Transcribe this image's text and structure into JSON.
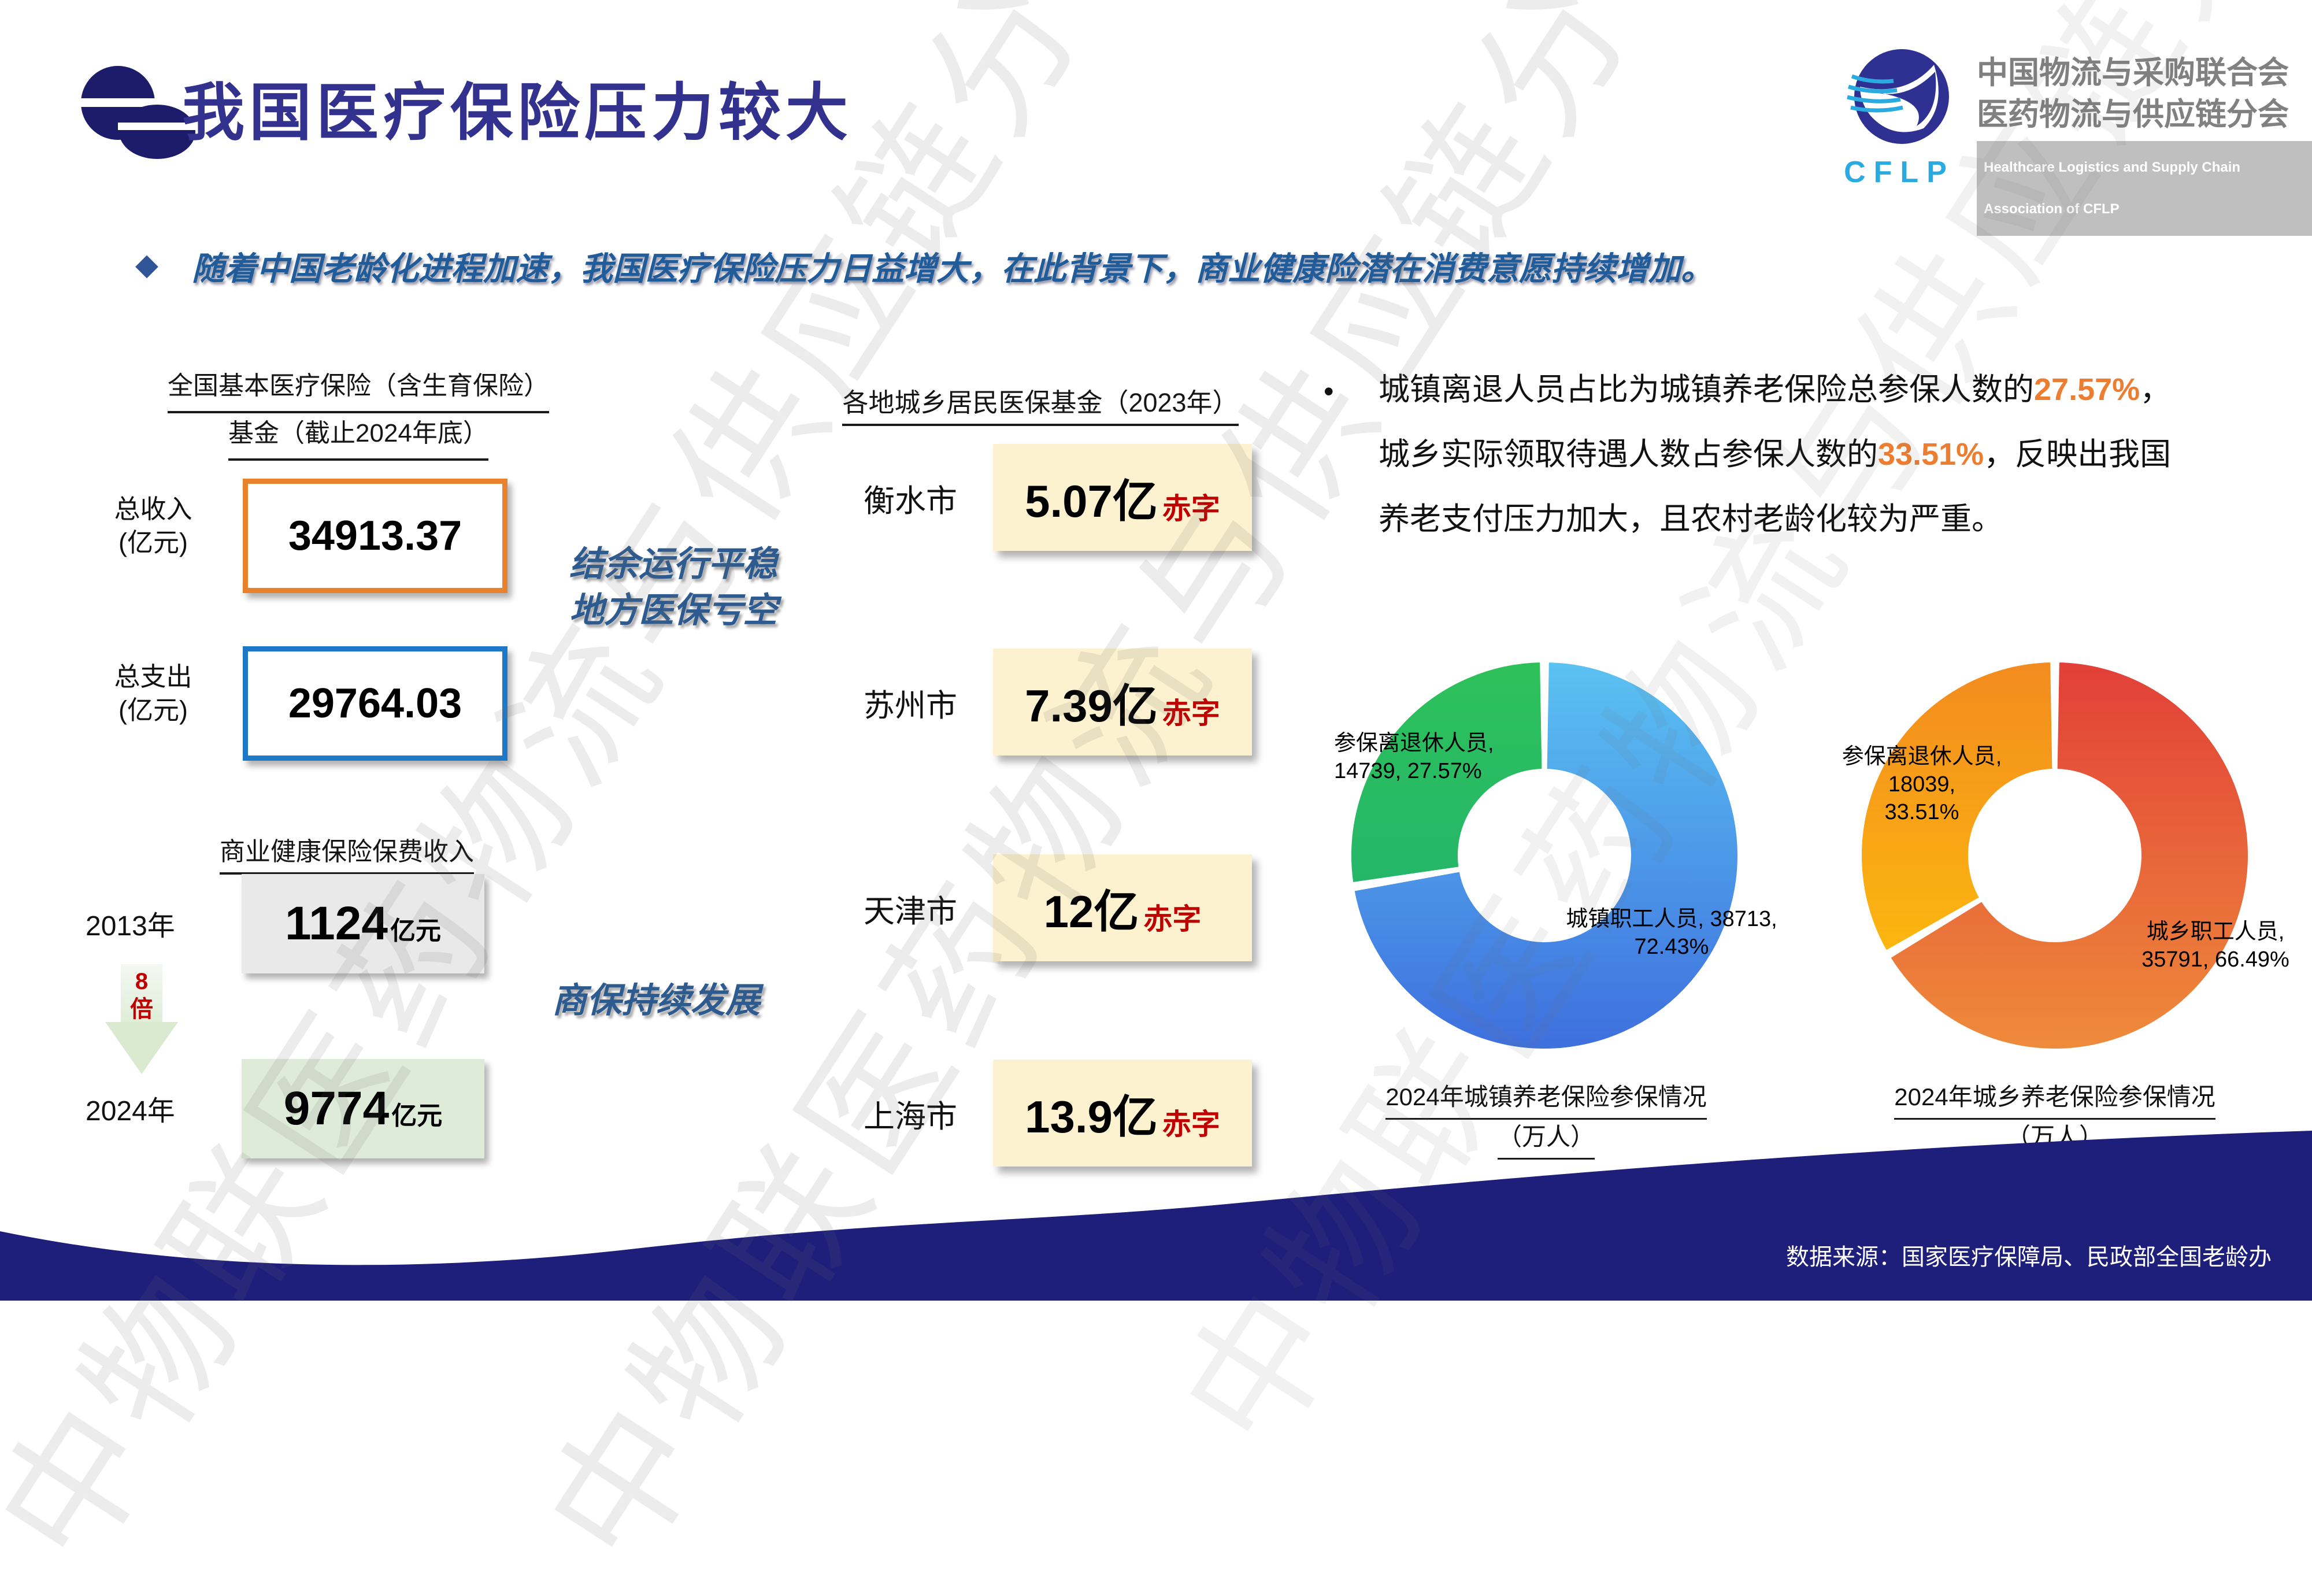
{
  "slide": {
    "title": "我国医疗保险压力较大",
    "watermark": "中物联医药物流与供应链分会",
    "source": "数据来源：国家医疗保障局、民政部全国老龄办"
  },
  "logo": {
    "acronym": "CFLP",
    "org_line1": "中国物流与采购联合会",
    "org_line2": "医药物流与供应链分会",
    "org_en": "Healthcare Logistics and Supply Chain Association of CFLP"
  },
  "intro": {
    "bullet": "◆",
    "text": "随着中国老龄化进程加速，我国医疗保险压力日益增大，在此背景下，商业健康险潜在消费意愿持续增加。"
  },
  "basic_fund": {
    "header_line1": "全国基本医疗保险（含生育保险）",
    "header_line2": "基金（截止2024年底）",
    "income_label_1": "总收入",
    "income_label_2": "(亿元)",
    "income_value": "34913.37",
    "expense_label_1": "总支出",
    "expense_label_2": "(亿元)",
    "expense_value": "29764.03"
  },
  "captions": {
    "caption1_line1": "结余运行平稳",
    "caption1_line2": "地方医保亏空",
    "caption2": "商保持续发展"
  },
  "commercial": {
    "header": "商业健康保险保费收入",
    "year1": "2013年",
    "value1": "1124",
    "unit": "亿元",
    "multiplier_line1": "8",
    "multiplier_line2": "倍",
    "year2": "2024年",
    "value2": "9774"
  },
  "local_fund": {
    "header": "各地城乡居民医保基金（2023年）",
    "deficit_label": "赤字",
    "cities": [
      {
        "name": "衡水市",
        "value": "5.07亿"
      },
      {
        "name": "苏州市",
        "value": "7.39亿"
      },
      {
        "name": "天津市",
        "value": "12亿"
      },
      {
        "name": "上海市",
        "value": "13.9亿"
      }
    ]
  },
  "right_text": {
    "bullet": "•",
    "l1a": "城镇离退人员占比为城镇养老保险总参保人数的",
    "l1pct": "27.57%",
    "l1b": "，",
    "l2a": "城乡实际领取待遇人数占参保人数的",
    "l2pct": "33.51%",
    "l2b": "，反映出我国",
    "l3": "养老支付压力加大，且农村老龄化较为严重。",
    "highlight_color": "#ED7D31"
  },
  "chart_data": [
    {
      "type": "pie",
      "donut": true,
      "title_line1": "2024年城镇养老保险参保情况",
      "title_line2": "（万人）",
      "unit": "万人",
      "slices": [
        {
          "label": "城镇职工人员",
          "value": 38713,
          "pct": 72.43,
          "color_top": "#5BC2F2",
          "color_bottom": "#3E6FDE",
          "label_line1": "城镇职工人员, 38713,",
          "label_line2": "72.43%"
        },
        {
          "label": "参保离退休人员",
          "value": 14739,
          "pct": 27.57,
          "color_top": "#2EC15A",
          "color_bottom": "#1EAE75",
          "label_line1": "参保离退休人员,",
          "label_line2": "14739, 27.57%"
        }
      ]
    },
    {
      "type": "pie",
      "donut": true,
      "title_line1": "2024年城乡养老保险参保情况",
      "title_line2": "（万人）",
      "unit": "万人",
      "slices": [
        {
          "label": "城乡职工人员",
          "value": 35791,
          "pct": 66.49,
          "color_top": "#E23F38",
          "color_bottom": "#EE8B3B",
          "label_line1": "城乡职工人员,",
          "label_line2": "35791, 66.49%"
        },
        {
          "label": "参保离退休人员",
          "value": 18039,
          "pct": 33.51,
          "color_top": "#F28B1F",
          "color_bottom": "#FFC50A",
          "label_line1": "参保离退休人员, 18039,",
          "label_line2": "33.51%"
        }
      ]
    }
  ]
}
